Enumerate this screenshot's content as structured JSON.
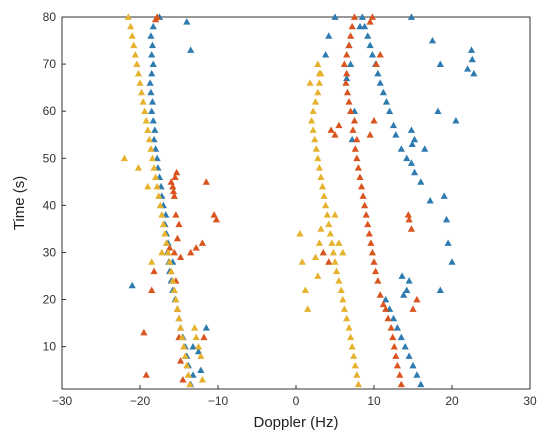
{
  "chart_data": {
    "type": "scatter",
    "title": "",
    "xlabel": "Doppler (Hz)",
    "ylabel": "Time (s)",
    "xlim": [
      -30,
      30
    ],
    "ylim": [
      1,
      80
    ],
    "xticks": [
      -30,
      -20,
      -10,
      0,
      10,
      20,
      30
    ],
    "yticks": [
      10,
      20,
      30,
      40,
      50,
      60,
      70,
      80
    ],
    "xtick_labels": [
      "−30",
      "−20",
      "−10",
      "0",
      "10",
      "20",
      "30"
    ],
    "ytick_labels": [
      "10",
      "20",
      "30",
      "40",
      "50",
      "60",
      "70",
      "80"
    ],
    "grid": false,
    "marker": "triangle",
    "series": [
      {
        "color": "#2e7bb0",
        "points": [
          [
            -13.5,
            2
          ],
          [
            -13.2,
            4
          ],
          [
            -13.8,
            6
          ],
          [
            -14,
            8
          ],
          [
            -14.2,
            10
          ],
          [
            -14.5,
            12
          ],
          [
            -14.8,
            14
          ],
          [
            -15,
            16
          ],
          [
            -15.2,
            18
          ],
          [
            -15.5,
            20
          ],
          [
            -15.8,
            22
          ],
          [
            -16,
            24
          ],
          [
            -16.2,
            26
          ],
          [
            -16.3,
            28
          ],
          [
            -16.5,
            30
          ],
          [
            -16.4,
            32
          ],
          [
            -16.6,
            34
          ],
          [
            -16.8,
            36
          ],
          [
            -16.7,
            38
          ],
          [
            -17,
            40
          ],
          [
            -17.2,
            42
          ],
          [
            -17.3,
            44
          ],
          [
            -17.5,
            46
          ],
          [
            -17.7,
            48
          ],
          [
            -17.8,
            50
          ],
          [
            -18,
            52
          ],
          [
            -18.2,
            54
          ],
          [
            -18.1,
            56
          ],
          [
            -18.3,
            58
          ],
          [
            -18.5,
            60
          ],
          [
            -18.4,
            62
          ],
          [
            -18.6,
            64
          ],
          [
            -18.7,
            66
          ],
          [
            -18.5,
            68
          ],
          [
            -18.3,
            70
          ],
          [
            -18.5,
            72
          ],
          [
            -18.4,
            74
          ],
          [
            -18.6,
            76
          ],
          [
            -18.3,
            78
          ],
          [
            -17.5,
            80
          ],
          [
            -12.2,
            5
          ],
          [
            -12.5,
            9
          ],
          [
            -11.5,
            14
          ],
          [
            -15.8,
            28
          ],
          [
            -21,
            23
          ],
          [
            -13.5,
            73
          ],
          [
            -14,
            79
          ],
          [
            -13.2,
            10
          ],
          [
            16,
            2
          ],
          [
            15.5,
            4
          ],
          [
            15,
            6
          ],
          [
            14.5,
            8
          ],
          [
            14,
            10
          ],
          [
            13.5,
            12
          ],
          [
            13,
            14
          ],
          [
            12.5,
            16
          ],
          [
            12,
            18
          ],
          [
            11.5,
            20
          ],
          [
            13.8,
            21
          ],
          [
            14.2,
            22
          ],
          [
            14.5,
            24
          ],
          [
            13.6,
            25
          ],
          [
            19,
            42
          ],
          [
            19.3,
            37
          ],
          [
            19.5,
            32
          ],
          [
            20,
            28
          ],
          [
            18.5,
            22
          ],
          [
            17.2,
            41
          ],
          [
            16,
            45
          ],
          [
            15.2,
            47
          ],
          [
            14.8,
            49
          ],
          [
            14.2,
            50
          ],
          [
            13.5,
            52
          ],
          [
            12.8,
            55
          ],
          [
            12.5,
            57
          ],
          [
            12,
            60
          ],
          [
            11.6,
            62
          ],
          [
            11.2,
            64
          ],
          [
            10.8,
            66
          ],
          [
            10.5,
            68
          ],
          [
            10.2,
            70
          ],
          [
            9.8,
            72
          ],
          [
            9.5,
            74
          ],
          [
            9.2,
            76
          ],
          [
            8.8,
            78
          ],
          [
            8.5,
            80
          ],
          [
            8.2,
            78
          ],
          [
            7.5,
            60
          ],
          [
            7.2,
            54
          ],
          [
            6.8,
            74
          ],
          [
            7,
            70
          ],
          [
            6.5,
            67
          ],
          [
            5,
            80
          ],
          [
            4.2,
            76
          ],
          [
            3.8,
            72
          ],
          [
            14.8,
            80
          ],
          [
            17.5,
            75
          ],
          [
            18.5,
            70
          ],
          [
            18.2,
            60
          ],
          [
            20.5,
            58
          ],
          [
            22.5,
            73
          ],
          [
            22.6,
            71
          ],
          [
            22,
            69
          ],
          [
            22.8,
            68
          ],
          [
            14.8,
            56
          ],
          [
            15.2,
            54
          ],
          [
            14.9,
            53
          ],
          [
            16.5,
            52
          ]
        ]
      },
      {
        "color": "#d9541e",
        "points": [
          [
            -14.5,
            3
          ],
          [
            -14.8,
            7
          ],
          [
            -15,
            12
          ],
          [
            -15.2,
            18
          ],
          [
            -15.4,
            24
          ],
          [
            -15.6,
            30
          ],
          [
            -15.2,
            33
          ],
          [
            -15,
            36
          ],
          [
            -15.4,
            38
          ],
          [
            -15.6,
            42
          ],
          [
            -15.8,
            44
          ],
          [
            -16,
            45
          ],
          [
            -15.5,
            46
          ],
          [
            -15.3,
            47
          ],
          [
            -15.7,
            43
          ],
          [
            -16.2,
            31
          ],
          [
            -14.8,
            29
          ],
          [
            -18.2,
            26
          ],
          [
            -18.5,
            22
          ],
          [
            -19.5,
            13
          ],
          [
            -19.2,
            4
          ],
          [
            -11.8,
            12
          ],
          [
            -10.5,
            38
          ],
          [
            -10.2,
            37
          ],
          [
            -13.5,
            30
          ],
          [
            -12.8,
            31
          ],
          [
            -11.5,
            45
          ],
          [
            -17.8,
            80
          ],
          [
            -18,
            79.5
          ],
          [
            -12,
            32
          ],
          [
            13.5,
            2
          ],
          [
            13.3,
            4
          ],
          [
            13,
            6
          ],
          [
            12.8,
            8
          ],
          [
            12.6,
            10
          ],
          [
            12.4,
            12
          ],
          [
            12.2,
            14
          ],
          [
            11.8,
            16
          ],
          [
            11.5,
            18
          ],
          [
            11.2,
            19
          ],
          [
            10.8,
            21
          ],
          [
            10.5,
            24
          ],
          [
            10.2,
            26
          ],
          [
            10,
            28
          ],
          [
            9.8,
            30
          ],
          [
            9.6,
            32
          ],
          [
            9.4,
            34
          ],
          [
            9.2,
            36
          ],
          [
            9,
            38
          ],
          [
            8.8,
            40
          ],
          [
            8.6,
            42
          ],
          [
            8.4,
            44
          ],
          [
            8.2,
            46
          ],
          [
            8,
            48
          ],
          [
            7.8,
            50
          ],
          [
            7.6,
            52
          ],
          [
            7.8,
            54
          ],
          [
            7.3,
            56
          ],
          [
            7.5,
            58
          ],
          [
            7,
            60
          ],
          [
            6.8,
            62
          ],
          [
            6.6,
            64
          ],
          [
            6.4,
            66
          ],
          [
            6.5,
            68
          ],
          [
            6.2,
            70
          ],
          [
            6.5,
            72
          ],
          [
            6.8,
            74
          ],
          [
            7,
            76
          ],
          [
            7.2,
            78
          ],
          [
            7.5,
            80
          ],
          [
            9.5,
            79
          ],
          [
            9.8,
            80
          ],
          [
            14.5,
            37
          ],
          [
            14.4,
            38
          ],
          [
            14.8,
            35
          ],
          [
            15.5,
            20
          ],
          [
            15,
            18
          ],
          [
            10.3,
            70
          ],
          [
            10.8,
            72
          ],
          [
            5.5,
            57
          ],
          [
            4.5,
            56
          ],
          [
            5,
            55
          ],
          [
            3.5,
            30
          ],
          [
            4.2,
            28
          ],
          [
            9.5,
            55
          ],
          [
            10,
            58
          ]
        ]
      },
      {
        "color": "#e6b22e",
        "points": [
          [
            -21.5,
            80
          ],
          [
            -21.2,
            78
          ],
          [
            -21,
            76
          ],
          [
            -20.8,
            74
          ],
          [
            -20.6,
            72
          ],
          [
            -20.4,
            70
          ],
          [
            -20.2,
            68
          ],
          [
            -20,
            66
          ],
          [
            -19.8,
            64
          ],
          [
            -19.6,
            62
          ],
          [
            -19.4,
            60
          ],
          [
            -19.2,
            58
          ],
          [
            -19,
            56
          ],
          [
            -18.8,
            54
          ],
          [
            -18.6,
            52
          ],
          [
            -18.4,
            50
          ],
          [
            -18.2,
            48
          ],
          [
            -18,
            46
          ],
          [
            -17.8,
            44
          ],
          [
            -17.6,
            42
          ],
          [
            -17.4,
            40
          ],
          [
            -17.2,
            38
          ],
          [
            -17,
            36
          ],
          [
            -16.8,
            34
          ],
          [
            -16.6,
            32
          ],
          [
            -16.4,
            30
          ],
          [
            -16.2,
            28
          ],
          [
            -16,
            26
          ],
          [
            -15.8,
            24
          ],
          [
            -15.6,
            22
          ],
          [
            -15.4,
            20
          ],
          [
            -15.2,
            18
          ],
          [
            -15,
            16
          ],
          [
            -14.8,
            14
          ],
          [
            -14.6,
            12
          ],
          [
            -14.4,
            10
          ],
          [
            -14.2,
            8
          ],
          [
            -14,
            6
          ],
          [
            -13.8,
            4
          ],
          [
            -13.6,
            2
          ],
          [
            -12.8,
            12
          ],
          [
            -12.5,
            10
          ],
          [
            -12.2,
            8
          ],
          [
            -13,
            14
          ],
          [
            -22,
            50
          ],
          [
            -20.2,
            48
          ],
          [
            -19,
            44
          ],
          [
            -17.2,
            30
          ],
          [
            -18.5,
            28
          ],
          [
            -12,
            3
          ],
          [
            8,
            2
          ],
          [
            7.8,
            4
          ],
          [
            7.6,
            6
          ],
          [
            7.4,
            8
          ],
          [
            7.2,
            10
          ],
          [
            7,
            12
          ],
          [
            6.8,
            14
          ],
          [
            6.5,
            16
          ],
          [
            6.2,
            18
          ],
          [
            6,
            20
          ],
          [
            5.8,
            22
          ],
          [
            5.5,
            24
          ],
          [
            5.2,
            26
          ],
          [
            5,
            28
          ],
          [
            4.8,
            30
          ],
          [
            4.6,
            32
          ],
          [
            4.4,
            34
          ],
          [
            4.2,
            36
          ],
          [
            4,
            38
          ],
          [
            3.8,
            40
          ],
          [
            3.6,
            42
          ],
          [
            3.4,
            44
          ],
          [
            3.2,
            46
          ],
          [
            3,
            48
          ],
          [
            2.8,
            50
          ],
          [
            2.6,
            52
          ],
          [
            2.4,
            54
          ],
          [
            2.2,
            56
          ],
          [
            2,
            58
          ],
          [
            2.2,
            60
          ],
          [
            2.5,
            62
          ],
          [
            2.8,
            64
          ],
          [
            3,
            66
          ],
          [
            3.2,
            68
          ],
          [
            2.8,
            70
          ],
          [
            0.5,
            34
          ],
          [
            0.8,
            28
          ],
          [
            1.2,
            22
          ],
          [
            1.5,
            18
          ],
          [
            2.5,
            29
          ],
          [
            3,
            32
          ],
          [
            3.2,
            35
          ],
          [
            5,
            38
          ],
          [
            5.5,
            32
          ],
          [
            6,
            30
          ],
          [
            3,
            68
          ],
          [
            1.8,
            66
          ],
          [
            2.8,
            25
          ]
        ]
      }
    ]
  }
}
